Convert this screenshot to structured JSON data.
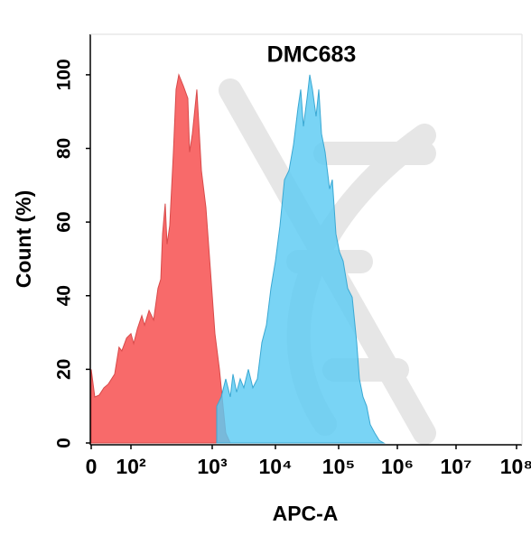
{
  "chart_data": {
    "type": "histogram-area",
    "title": "DMC683",
    "x_label": "APC-A",
    "y_label": "Count  (%)",
    "xscale": "biexponential",
    "xlim": [
      0,
      100000000
    ],
    "ylim": [
      0,
      111
    ],
    "xticks": [
      0,
      {
        "value": 100,
        "label": "10²"
      },
      {
        "value": 1000,
        "label": "10³"
      },
      {
        "value": 10000,
        "label": "10⁴"
      },
      {
        "value": 100000,
        "label": "10⁵"
      },
      {
        "value": 1000000,
        "label": "10⁶"
      },
      {
        "value": 10000000,
        "label": "10⁷"
      },
      {
        "value": 100000000,
        "label": "10⁸"
      }
    ],
    "yticks": [
      0,
      20,
      40,
      60,
      80,
      100
    ],
    "series": [
      {
        "color": "#f86a6a",
        "x": [
          0,
          9,
          20,
          32,
          43,
          59,
          70,
          77,
          89,
          100,
          108,
          120,
          136,
          147,
          167,
          190,
          215,
          233,
          245,
          264,
          278,
          300,
          333,
          359,
          388,
          441,
          501,
          527,
          570,
          647,
          736,
          836,
          950,
          1104,
          1301,
          1484,
          1637,
          1931
        ],
        "values": [
          20,
          12.5,
          13,
          15,
          16,
          18.7,
          26,
          25,
          28.5,
          29.7,
          27,
          31,
          34.6,
          32,
          36,
          33.4,
          42,
          44.5,
          56.8,
          65,
          54,
          59,
          79,
          96,
          100,
          97,
          93.6,
          79,
          84,
          96,
          74,
          64,
          47,
          29.7,
          20,
          10,
          2.7,
          0
        ]
      },
      {
        "color": "#5ccbf3",
        "x": [
          1179,
          1389,
          1637,
          1931,
          2131,
          2432,
          2773,
          3162,
          3728,
          4394,
          5179,
          6105,
          7197,
          8483,
          10000,
          11790,
          13890,
          16380,
          19310,
          22760,
          25120,
          27730,
          31620,
          34890,
          38520,
          43940,
          48520,
          53540,
          61050,
          71970,
          79430,
          90570,
          103600,
          119300,
          142500,
          170100,
          203100,
          225700,
          260100,
          300000,
          345400,
          412500,
          492500,
          587500
        ],
        "values": [
          10,
          12.5,
          17.4,
          12.5,
          18.7,
          13.8,
          17.4,
          15,
          20,
          15,
          17.4,
          27.3,
          32,
          42,
          49.4,
          59,
          71.5,
          74,
          81,
          91,
          96,
          86,
          93.6,
          100,
          96,
          88.7,
          96,
          84,
          79,
          69,
          71.5,
          56.8,
          51.8,
          49.4,
          42,
          39.6,
          27.3,
          17.4,
          12.5,
          10,
          5,
          2.7,
          0.7,
          0
        ]
      }
    ]
  }
}
